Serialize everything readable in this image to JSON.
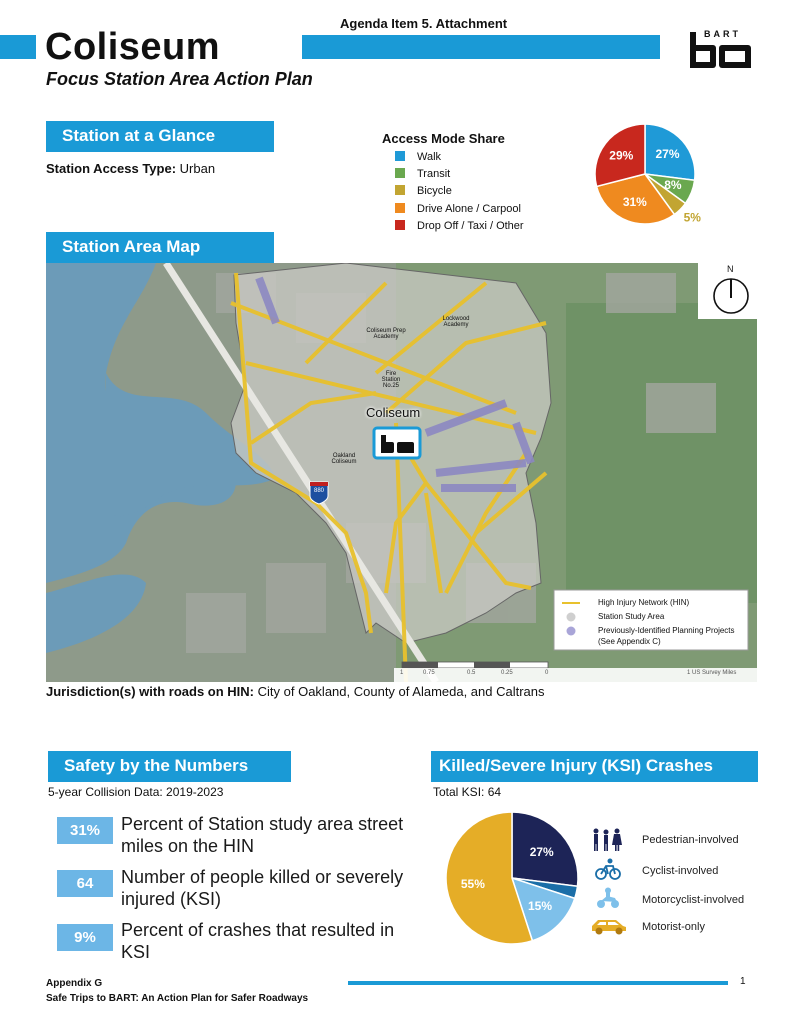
{
  "header": {
    "agenda": "Agenda Item 5.  Attachment",
    "title": "Coliseum",
    "subtitle": "Focus Station Area Action Plan",
    "logo_text": "BART"
  },
  "glance": {
    "section_title": "Station at a Glance",
    "access_type_label": "Station Access Type:",
    "access_type_value": "Urban"
  },
  "access_mode": {
    "title": "Access Mode Share",
    "legend": [
      {
        "label": "Walk",
        "color": "#1f9ad7"
      },
      {
        "label": "Transit",
        "color": "#6aa84f"
      },
      {
        "label": "Bicycle",
        "color": "#c2a532"
      },
      {
        "label": "Drive Alone / Carpool",
        "color": "#ef8a1f"
      },
      {
        "label": "Drop Off / Taxi / Other",
        "color": "#c8281e"
      }
    ]
  },
  "map": {
    "section_title": "Station Area Map",
    "station_label": "Coliseum",
    "north": "N",
    "place_labels": [
      "Lockwood Academy",
      "Coliseum Prep Academy",
      "Fire Station No.25",
      "Oakland Coliseum"
    ],
    "highway_shield": "880",
    "legend": [
      "High Injury Network (HIN)",
      "Station Study Area",
      "Previously-Identified Planning Projects",
      "(See Appendix C)"
    ],
    "scale_labels": [
      "1",
      "0.75",
      "0.5",
      "0.25",
      "0",
      "1 US Survey Miles"
    ],
    "jurisdiction_label": "Jurisdiction(s) with roads on HIN:",
    "jurisdiction_value": "City of Oakland, County of Alameda, and Caltrans"
  },
  "safety": {
    "section_title": "Safety by the Numbers",
    "subtitle": "5-year Collision Data: 2019-2023",
    "stats": [
      {
        "value": "31%",
        "text": "Percent of Station study area street miles on the HIN"
      },
      {
        "value": "64",
        "text": "Number of people killed or severely injured (KSI)"
      },
      {
        "value": "9%",
        "text": "Percent of crashes that resulted in KSI"
      }
    ]
  },
  "ksi": {
    "section_title": "Killed/Severe Injury (KSI) Crashes",
    "total": "Total KSI: 64",
    "legend": [
      {
        "label": "Pedestrian-involved",
        "icon": "pedestrian-icon"
      },
      {
        "label": "Cyclist-involved",
        "icon": "cyclist-icon"
      },
      {
        "label": "Motorcyclist-involved",
        "icon": "motorcyclist-icon"
      },
      {
        "label": "Motorist-only",
        "icon": "car-icon"
      }
    ]
  },
  "chart_data": [
    {
      "type": "pie",
      "title": "Access Mode Share",
      "categories": [
        "Walk",
        "Transit",
        "Bicycle",
        "Drive Alone / Carpool",
        "Drop Off / Taxi / Other"
      ],
      "values": [
        27,
        8,
        5,
        31,
        29
      ],
      "labels": [
        "27%",
        "8%",
        "5%",
        "31%",
        "29%"
      ],
      "colors": [
        "#1f9ad7",
        "#6aa84f",
        "#c2a532",
        "#ef8a1f",
        "#c8281e"
      ]
    },
    {
      "type": "pie",
      "title": "Killed/Severe Injury (KSI) Crashes",
      "categories": [
        "Pedestrian-involved",
        "Cyclist-involved",
        "Motorcyclist-involved",
        "Motorist-only"
      ],
      "values": [
        27,
        3,
        15,
        55
      ],
      "labels": [
        "27%",
        "3%",
        "15%",
        "55%"
      ],
      "colors": [
        "#1d2457",
        "#1a6ea8",
        "#7ec0ea",
        "#e5ad27"
      ]
    }
  ],
  "footer": {
    "appendix": "Appendix G",
    "doc_title": "Safe Trips to BART: An Action Plan for Safer Roadways",
    "page": "1"
  }
}
